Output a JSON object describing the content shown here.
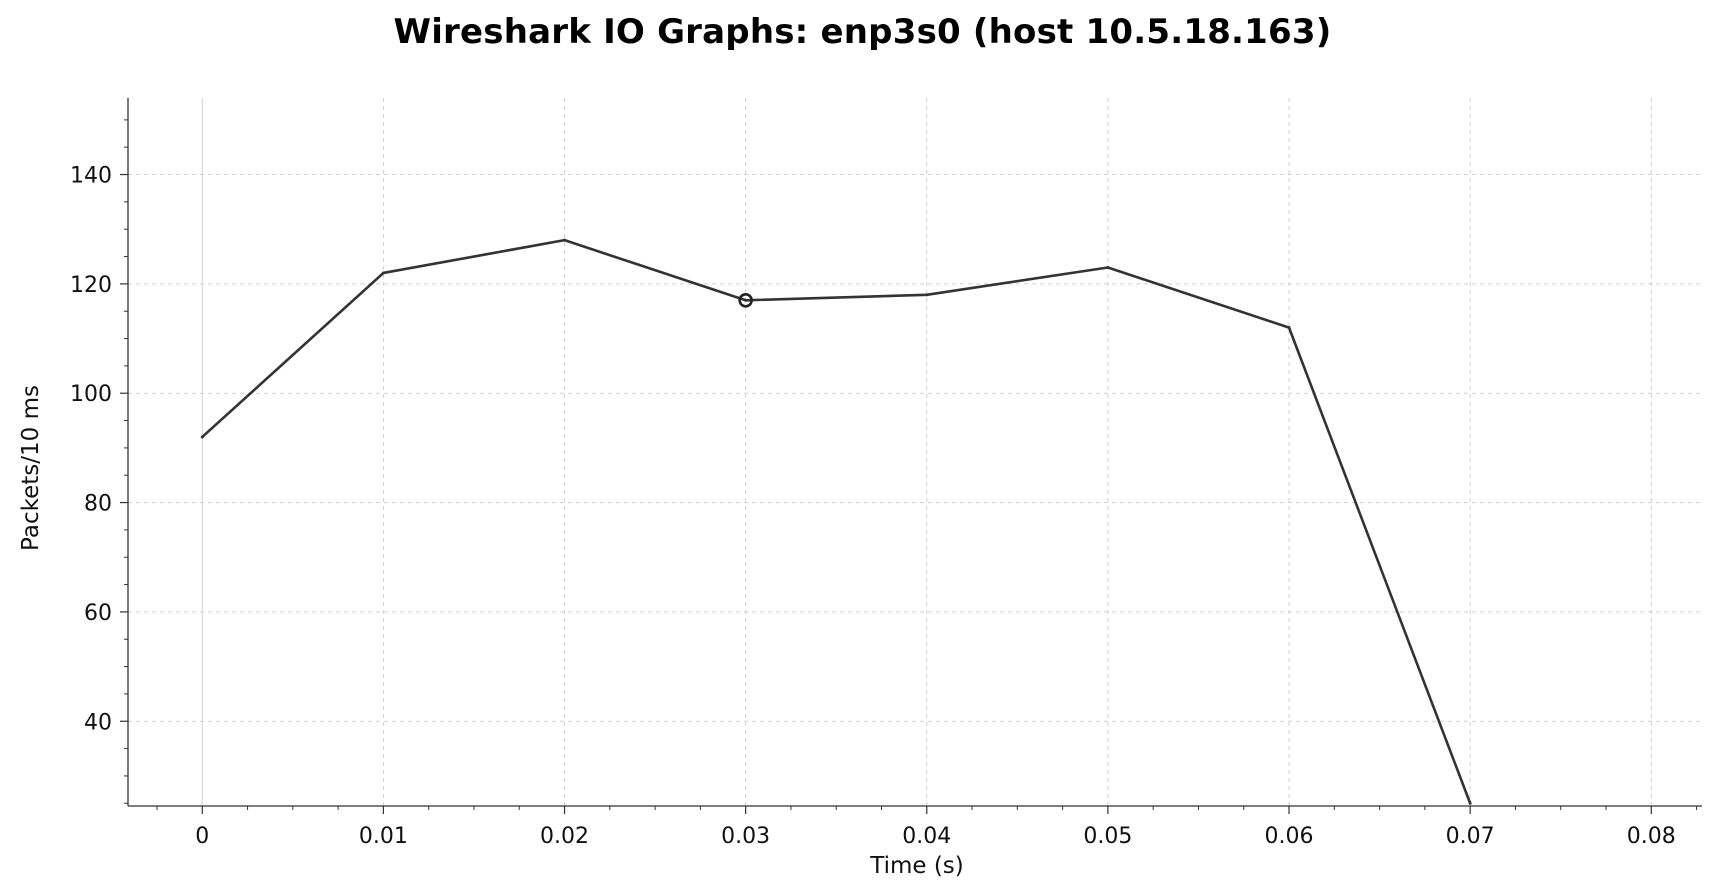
{
  "chart_data": {
    "type": "line",
    "title": "Wireshark IO Graphs: enp3s0 (host 10.5.18.163)",
    "xlabel": "Time (s)",
    "ylabel": "Packets/10 ms",
    "xlim": [
      -0.0041,
      0.0828
    ],
    "ylim": [
      24.5,
      154
    ],
    "x_ticks": [
      0,
      0.01,
      0.02,
      0.03,
      0.04,
      0.05,
      0.06,
      0.07,
      0.08
    ],
    "x_tick_labels": [
      "0",
      "0.01",
      "0.02",
      "0.03",
      "0.04",
      "0.05",
      "0.06",
      "0.07",
      "0.08"
    ],
    "y_ticks": [
      40,
      60,
      80,
      100,
      120,
      140
    ],
    "y_tick_labels": [
      "40",
      "60",
      "80",
      "100",
      "120",
      "140"
    ],
    "grid": true,
    "legend": "none",
    "series": [
      {
        "x": [
          0,
          0.01,
          0.02,
          0.03,
          0.04,
          0.05,
          0.06,
          0.07
        ],
        "values": [
          92,
          122,
          128,
          117,
          118,
          123,
          112,
          25
        ],
        "marker_at_x": 0.03,
        "color": "#333333"
      }
    ]
  }
}
